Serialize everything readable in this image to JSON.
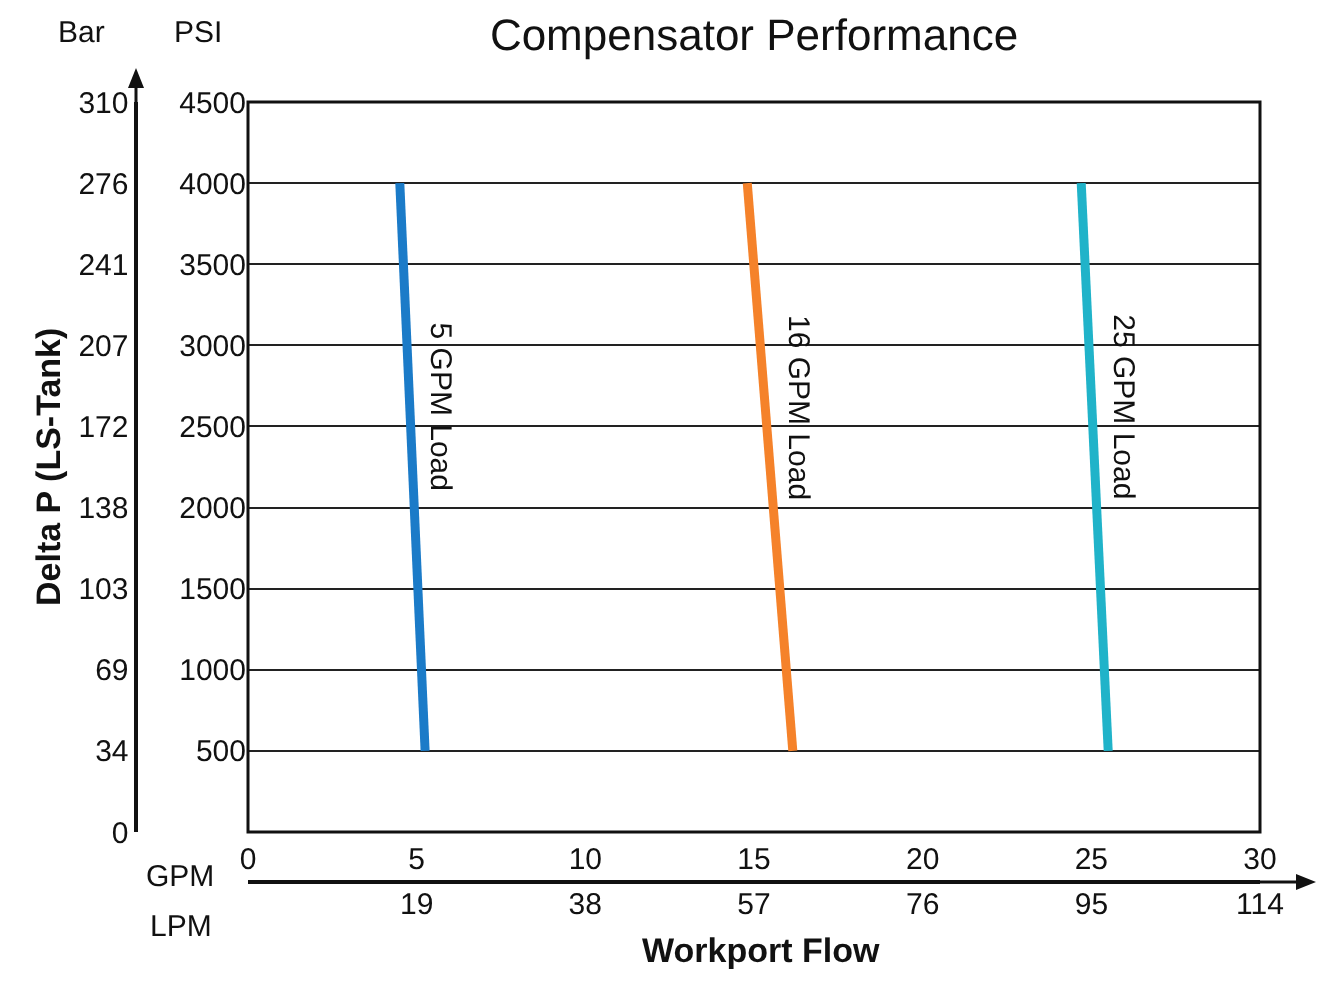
{
  "chart_data": {
    "type": "line",
    "title": "Compensator Performance",
    "xlabel": "Workport Flow",
    "ylabel": "Delta P (LS-Tank)",
    "annotations": [
      "Bar",
      "PSI",
      "GPM",
      "LPM"
    ],
    "xlim": [
      0,
      30
    ],
    "xticks": [
      0,
      5,
      10,
      15,
      20,
      25,
      30
    ],
    "x2lim": [
      0,
      113.56
    ],
    "x2ticks": [
      {
        "value": 18.93,
        "label": "19"
      },
      {
        "value": 37.85,
        "label": "38"
      },
      {
        "value": 56.78,
        "label": "57"
      },
      {
        "value": 75.71,
        "label": "76"
      },
      {
        "value": 94.64,
        "label": "95"
      },
      {
        "value": 113.56,
        "label": "114"
      }
    ],
    "y2lim": [
      0,
      4500
    ],
    "y2ticks": [
      500,
      1000,
      1500,
      2000,
      2500,
      3000,
      3500,
      4000,
      4500
    ],
    "ylim": [
      0,
      310.26
    ],
    "yticks": [
      0,
      {
        "value": 34.47,
        "label": "34"
      },
      {
        "value": 68.95,
        "label": "69"
      },
      {
        "value": 103.42,
        "label": "103"
      },
      {
        "value": 137.9,
        "label": "138"
      },
      {
        "value": 172.37,
        "label": "172"
      },
      {
        "value": 206.84,
        "label": "207"
      },
      {
        "value": 241.32,
        "label": "241"
      },
      {
        "value": 275.79,
        "label": "276"
      },
      {
        "value": 310.26,
        "label": "310"
      }
    ],
    "grid": "y",
    "legend": false,
    "line_style": "solid",
    "marker": "none",
    "series": [
      {
        "name": "5 GPM Load",
        "axis": "y2",
        "color": "#1b7bc8",
        "x": [
          4.5,
          5.25
        ],
        "values": [
          4000,
          500
        ]
      },
      {
        "name": "16 GPM Load",
        "axis": "y2",
        "color": "#f5822a",
        "x": [
          14.8,
          16.15
        ],
        "values": [
          4000,
          500
        ]
      },
      {
        "name": "25 GPM Load",
        "axis": "y2",
        "color": "#20b3c9",
        "x": [
          24.7,
          25.5
        ],
        "values": [
          4000,
          500
        ]
      }
    ]
  }
}
